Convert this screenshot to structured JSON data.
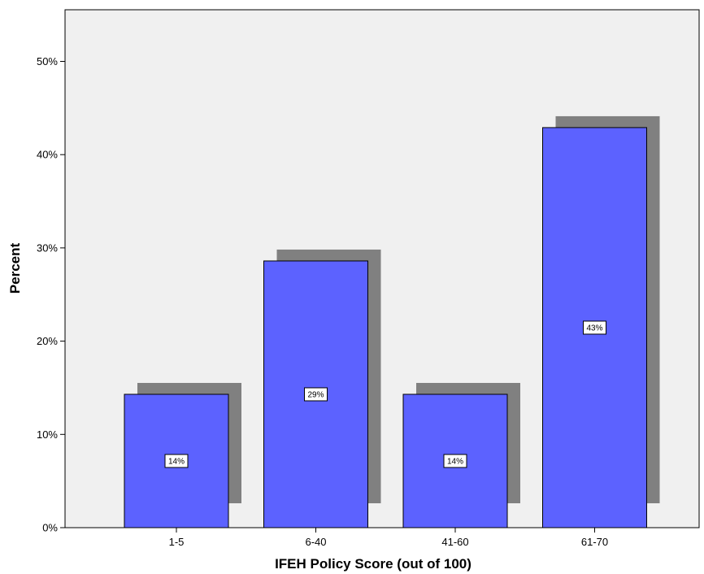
{
  "chart_data": {
    "type": "bar",
    "categories": [
      "1-5",
      "6-40",
      "41-60",
      "61-70"
    ],
    "values": [
      14.3,
      28.6,
      14.3,
      42.9
    ],
    "data_labels": [
      "14%",
      "29%",
      "14%",
      "43%"
    ],
    "xlabel": "IFEH Policy Score (out of 100)",
    "ylabel": "Percent",
    "ylim": [
      0,
      50
    ],
    "yticks": [
      0,
      10,
      20,
      30,
      40,
      50
    ],
    "ytick_labels": [
      "0%",
      "10%",
      "20%",
      "30%",
      "40%",
      "50%"
    ],
    "grid": false,
    "legend": "none",
    "colors": {
      "bar": "#5c62ff",
      "shadow": "#808080",
      "plot_background": "#f0f0f0"
    }
  }
}
